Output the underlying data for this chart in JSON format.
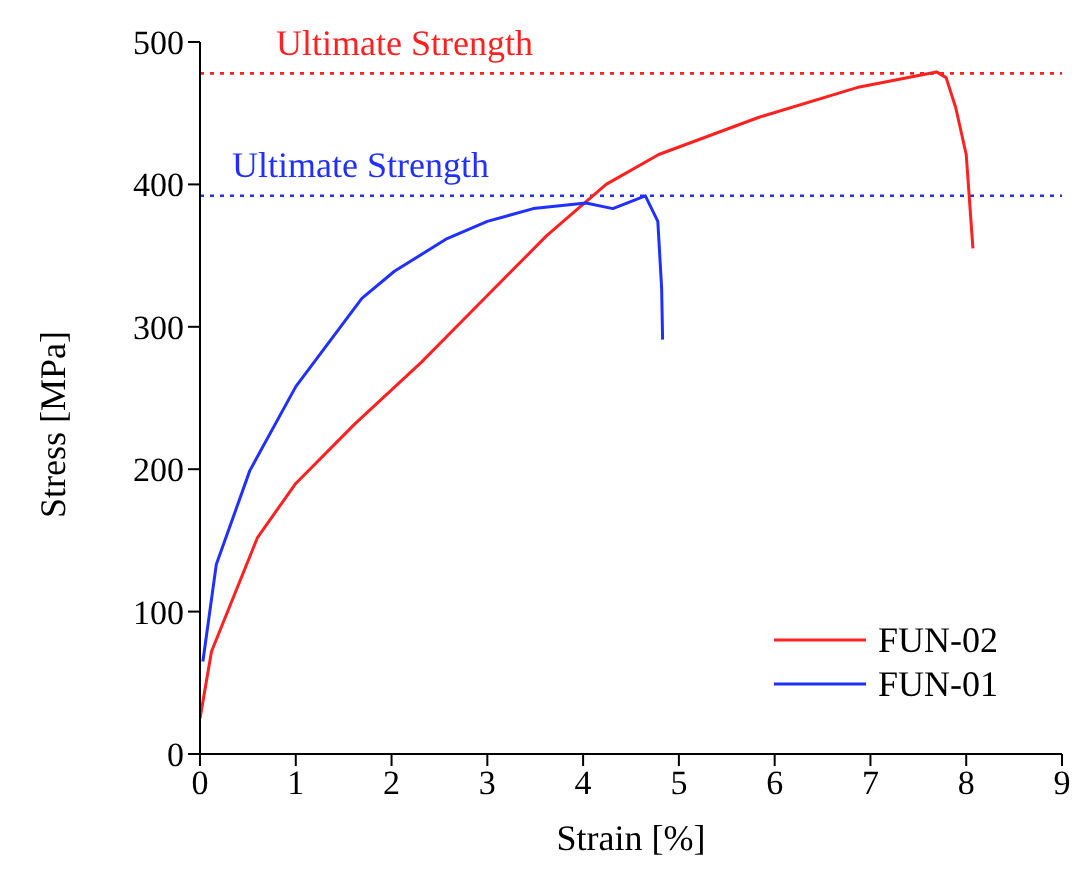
{
  "chart_data": {
    "type": "line",
    "xlabel": "Strain [%]",
    "ylabel": "Stress [MPa]",
    "xlim": [
      0,
      9
    ],
    "xticks": [
      0,
      1,
      2,
      3,
      4,
      5,
      6,
      7,
      8,
      9
    ],
    "ylim": [
      0,
      500
    ],
    "yticks": [
      0,
      100,
      200,
      300,
      400,
      500
    ],
    "legend": "bottom right",
    "line_style": "solid",
    "marker": "none",
    "series": [
      {
        "name": "FUN-02",
        "color": "#ff2020",
        "x": [
          0,
          0.12,
          0.6,
          1.0,
          1.62,
          2.31,
          3.0,
          3.62,
          4.24,
          4.79,
          5.83,
          6.86,
          7.69,
          7.79,
          7.89,
          8.0,
          8.07
        ],
        "values": [
          25,
          72,
          152,
          190,
          232,
          275,
          322,
          364,
          400,
          421,
          447,
          468,
          479,
          475,
          454,
          421,
          355
        ]
      },
      {
        "name": "FUN-01",
        "color": "#2030ff",
        "x": [
          0.03,
          0.17,
          0.52,
          1.0,
          1.69,
          2.03,
          2.58,
          3.0,
          3.48,
          4.03,
          4.31,
          4.65,
          4.78,
          4.82,
          4.83
        ],
        "values": [
          65,
          133,
          199,
          258,
          320,
          339,
          362,
          374,
          383,
          387,
          383,
          392,
          374,
          327,
          291
        ]
      }
    ],
    "ref_lines": [
      {
        "axis": "y",
        "value": 478,
        "label": "Ultimate Strength",
        "color": "#ff2020",
        "line_style": "dotted"
      },
      {
        "axis": "y",
        "value": 392,
        "label": "Ultimate Strength",
        "color": "#2030ff",
        "line_style": "dotted"
      }
    ]
  }
}
